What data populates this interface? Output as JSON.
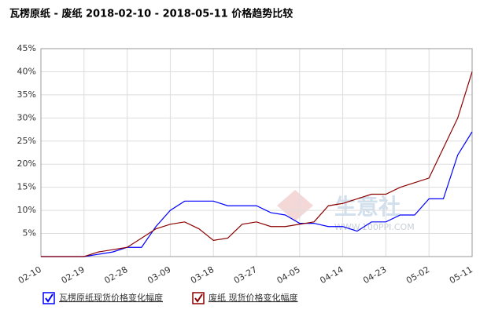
{
  "chart_data": {
    "type": "line",
    "title": "瓦楞原纸 - 废纸 2018-02-10 - 2018-05-11 价格趋势比较",
    "watermark": "生意社",
    "watermark_url": "WWW.100PPI.COM",
    "x": [
      "02-10",
      "02-13",
      "02-16",
      "02-19",
      "02-22",
      "02-25",
      "02-28",
      "03-03",
      "03-06",
      "03-09",
      "03-12",
      "03-15",
      "03-18",
      "03-21",
      "03-24",
      "03-27",
      "03-30",
      "04-02",
      "04-05",
      "04-08",
      "04-11",
      "04-14",
      "04-17",
      "04-20",
      "04-23",
      "04-26",
      "04-29",
      "05-02",
      "05-05",
      "05-08",
      "05-11"
    ],
    "xticks": [
      "02-10",
      "02-19",
      "02-28",
      "03-09",
      "03-18",
      "03-27",
      "04-05",
      "04-14",
      "04-23",
      "05-02",
      "05-11"
    ],
    "series": [
      {
        "name": "瓦楞原纸现货价格变化幅度",
        "color": "#0000ff",
        "values": [
          0,
          0,
          0,
          0,
          0.5,
          1,
          2,
          2,
          6.5,
          10,
          12,
          12,
          12,
          11,
          11,
          11,
          9.5,
          9,
          7.2,
          7.2,
          6.5,
          6.5,
          5.5,
          7.5,
          7.5,
          9,
          9,
          12.5,
          12.5,
          22,
          27
        ]
      },
      {
        "name": "废纸 现货价格变化幅度",
        "color": "#8b0000",
        "values": [
          0,
          0,
          0,
          0,
          1,
          1.5,
          2,
          4,
          6,
          7,
          7.5,
          6,
          3.5,
          4,
          7,
          7.5,
          6.5,
          6.5,
          7,
          7.5,
          11,
          11.5,
          12.5,
          13.5,
          13.5,
          15,
          16,
          17,
          23.5,
          30,
          40
        ]
      }
    ],
    "ylim": [
      0,
      45
    ],
    "yticks": [
      {
        "value": 5,
        "label": "5%"
      },
      {
        "value": 10,
        "label": "10%"
      },
      {
        "value": 15,
        "label": "15%"
      },
      {
        "value": 20,
        "label": "20%"
      },
      {
        "value": 25,
        "label": "25%"
      },
      {
        "value": 30,
        "label": "30%"
      },
      {
        "value": 35,
        "label": "35%"
      },
      {
        "value": 40,
        "label": "40%"
      },
      {
        "value": 45,
        "label": "45%"
      }
    ],
    "grid": true
  }
}
